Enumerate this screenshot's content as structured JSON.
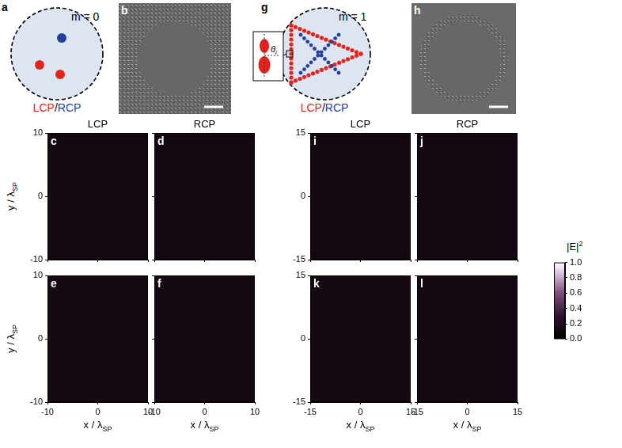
{
  "schematics": [
    {
      "panel": "a",
      "mode": "m = 0",
      "lcp": "LCP",
      "separator": "/",
      "rcp": "RCP"
    },
    {
      "panel": "g",
      "mode": "m = 1",
      "lcp": "LCP",
      "separator": "/",
      "rcp": "RCP",
      "angle_symbol": "θ",
      "angle_subscript": "i"
    }
  ],
  "images": [
    {
      "panel": "b"
    },
    {
      "panel": "h"
    }
  ],
  "chart_data": [
    {
      "type": "heatmap",
      "panel": "c",
      "title": "LCP",
      "xlim": [
        -10,
        10
      ],
      "xticks": [
        -10,
        0,
        10
      ],
      "ylim": [
        -10,
        10
      ],
      "yticks": [
        -10,
        0,
        10
      ],
      "tick_labels": "y",
      "y_label": {
        "text": "y / λ",
        "sub": "SP"
      }
    },
    {
      "type": "heatmap",
      "panel": "d",
      "title": "RCP",
      "xlim": [
        -10,
        10
      ],
      "xticks": [
        -10,
        0,
        10
      ],
      "ylim": [
        -10,
        10
      ],
      "yticks": [
        -10,
        0,
        10
      ],
      "tick_labels": false
    },
    {
      "type": "heatmap",
      "panel": "e",
      "xlim": [
        -10,
        10
      ],
      "xticks": [
        -10,
        0,
        10
      ],
      "ylim": [
        -10,
        10
      ],
      "yticks": [
        -10,
        0,
        10
      ],
      "x_label": {
        "text": "x / λ",
        "sub": "SP"
      },
      "y_label": {
        "text": "y / λ",
        "sub": "SP"
      }
    },
    {
      "type": "heatmap",
      "panel": "f",
      "xlim": [
        -10,
        10
      ],
      "xticks": [
        -10,
        0,
        10
      ],
      "ylim": [
        -10,
        10
      ],
      "yticks": [
        -10,
        0,
        10
      ],
      "tick_labels": "x",
      "x_label": {
        "text": "x / λ",
        "sub": "SP"
      }
    },
    {
      "type": "heatmap",
      "panel": "i",
      "title": "LCP",
      "xlim": [
        -15,
        15
      ],
      "xticks": [
        -15,
        0,
        15
      ],
      "ylim": [
        -15,
        15
      ],
      "yticks": [
        -15,
        0,
        15
      ],
      "tick_labels": "y"
    },
    {
      "type": "heatmap",
      "panel": "j",
      "title": "RCP",
      "xlim": [
        -15,
        15
      ],
      "xticks": [
        -15,
        0,
        15
      ],
      "ylim": [
        -15,
        15
      ],
      "yticks": [
        -15,
        0,
        15
      ],
      "tick_labels": false
    },
    {
      "type": "heatmap",
      "panel": "k",
      "xlim": [
        -15,
        15
      ],
      "xticks": [
        -15,
        0,
        15
      ],
      "ylim": [
        -15,
        15
      ],
      "yticks": [
        -15,
        0,
        15
      ],
      "x_label": {
        "text": "x / λ",
        "sub": "SP"
      }
    },
    {
      "type": "heatmap",
      "panel": "l",
      "xlim": [
        -15,
        15
      ],
      "xticks": [
        -15,
        0,
        15
      ],
      "ylim": [
        -15,
        15
      ],
      "yticks": [
        -15,
        0,
        15
      ],
      "tick_labels": "x",
      "x_label": {
        "text": "x / λ",
        "sub": "SP"
      }
    }
  ],
  "colorbar": {
    "label": "|E|",
    "label_sup": "2",
    "range": [
      0,
      1
    ],
    "ticks": [
      {
        "value": 0,
        "label": "0.0"
      },
      {
        "value": 0.2,
        "label": "0.2"
      },
      {
        "value": 0.4,
        "label": "0.4"
      },
      {
        "value": 0.6,
        "label": "0.6"
      },
      {
        "value": 0.8,
        "label": "0.8"
      },
      {
        "value": 1,
        "label": "1.0"
      }
    ]
  }
}
